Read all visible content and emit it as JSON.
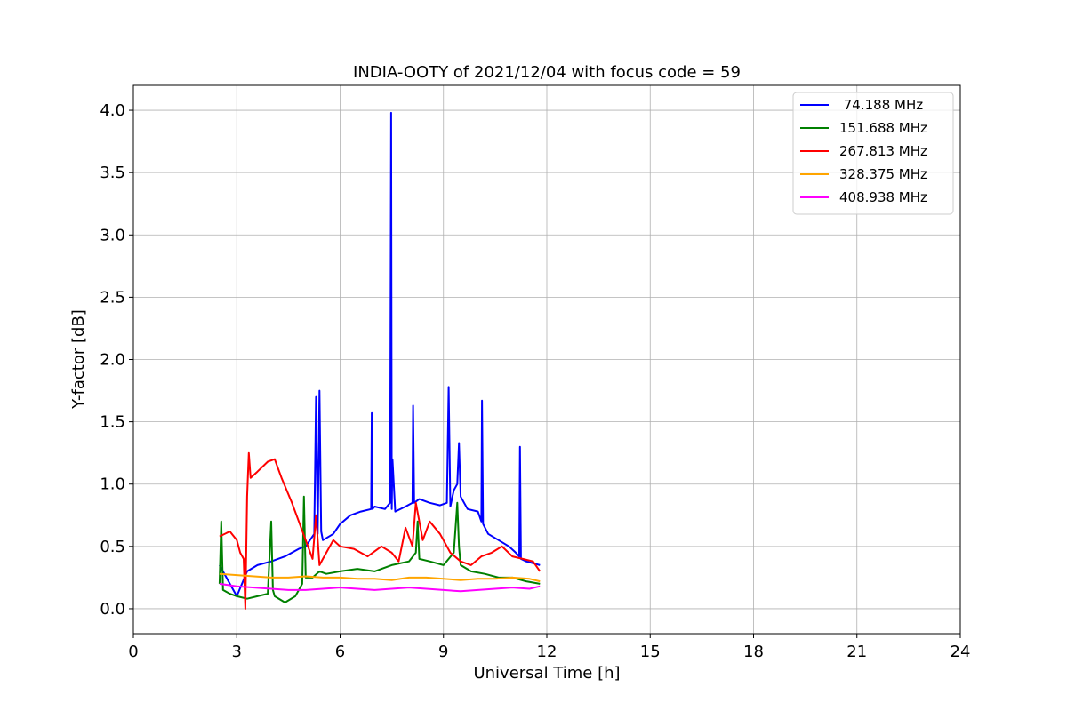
{
  "chart_data": {
    "type": "line",
    "title": "INDIA-OOTY of 2021/12/04 with focus code = 59",
    "xlabel": "Universal Time [h]",
    "ylabel": "Y-factor [dB]",
    "xlim": [
      0,
      24
    ],
    "ylim": [
      -0.2,
      4.2
    ],
    "xticks": [
      "0",
      "3",
      "6",
      "9",
      "12",
      "15",
      "18",
      "21",
      "24"
    ],
    "yticks": [
      "0.0",
      "0.5",
      "1.0",
      "1.5",
      "2.0",
      "2.5",
      "3.0",
      "3.5",
      "4.0"
    ],
    "grid": true,
    "legend_position": "top-right",
    "series": [
      {
        "name": " 74.188 MHz",
        "color": "#0000ff",
        "x": [
          2.5,
          2.8,
          3.0,
          3.3,
          3.6,
          4.0,
          4.4,
          4.8,
          5.0,
          5.25,
          5.3,
          5.35,
          5.4,
          5.45,
          5.5,
          5.8,
          6.0,
          6.3,
          6.6,
          6.9,
          6.92,
          6.94,
          7.0,
          7.3,
          7.45,
          7.48,
          7.5,
          7.52,
          7.6,
          7.9,
          8.1,
          8.12,
          8.15,
          8.3,
          8.6,
          8.9,
          9.1,
          9.15,
          9.2,
          9.3,
          9.4,
          9.45,
          9.5,
          9.7,
          10.0,
          10.1,
          10.12,
          10.15,
          10.3,
          10.6,
          10.9,
          11.1,
          11.2,
          11.22,
          11.25,
          11.4,
          11.8
        ],
        "y": [
          0.35,
          0.2,
          0.1,
          0.3,
          0.35,
          0.38,
          0.42,
          0.48,
          0.5,
          0.6,
          1.7,
          0.6,
          1.75,
          0.62,
          0.55,
          0.6,
          0.68,
          0.75,
          0.78,
          0.8,
          1.57,
          0.8,
          0.82,
          0.8,
          0.85,
          3.98,
          0.8,
          1.2,
          0.78,
          0.82,
          0.85,
          1.63,
          0.85,
          0.88,
          0.85,
          0.83,
          0.85,
          1.78,
          0.82,
          0.95,
          1.0,
          1.33,
          0.9,
          0.8,
          0.78,
          0.7,
          1.67,
          0.68,
          0.6,
          0.55,
          0.5,
          0.45,
          0.42,
          1.3,
          0.4,
          0.38,
          0.35
        ]
      },
      {
        "name": "151.688 MHz",
        "color": "#008000",
        "x": [
          2.5,
          2.55,
          2.6,
          2.8,
          3.0,
          3.3,
          3.6,
          3.9,
          4.0,
          4.05,
          4.1,
          4.4,
          4.7,
          4.9,
          4.95,
          5.0,
          5.2,
          5.4,
          5.6,
          6.0,
          6.5,
          7.0,
          7.5,
          8.0,
          8.2,
          8.25,
          8.3,
          8.6,
          9.0,
          9.3,
          9.4,
          9.45,
          9.5,
          9.8,
          10.2,
          10.6,
          11.0,
          11.4,
          11.8
        ],
        "y": [
          0.2,
          0.7,
          0.15,
          0.12,
          0.1,
          0.08,
          0.1,
          0.12,
          0.7,
          0.15,
          0.1,
          0.05,
          0.1,
          0.2,
          0.9,
          0.25,
          0.25,
          0.3,
          0.28,
          0.3,
          0.32,
          0.3,
          0.35,
          0.38,
          0.45,
          0.7,
          0.4,
          0.38,
          0.35,
          0.45,
          0.85,
          0.5,
          0.35,
          0.3,
          0.28,
          0.25,
          0.25,
          0.22,
          0.2
        ]
      },
      {
        "name": "267.813 MHz",
        "color": "#ff0000",
        "x": [
          2.5,
          2.8,
          3.0,
          3.1,
          3.2,
          3.25,
          3.3,
          3.35,
          3.4,
          3.6,
          3.9,
          4.1,
          4.3,
          4.6,
          5.0,
          5.2,
          5.3,
          5.4,
          5.5,
          5.8,
          6.0,
          6.4,
          6.8,
          7.2,
          7.5,
          7.7,
          7.9,
          8.1,
          8.2,
          8.4,
          8.6,
          8.9,
          9.2,
          9.5,
          9.8,
          10.1,
          10.4,
          10.7,
          11.0,
          11.3,
          11.6,
          11.8
        ],
        "y": [
          0.58,
          0.62,
          0.55,
          0.45,
          0.4,
          0.0,
          0.9,
          1.25,
          1.05,
          1.1,
          1.18,
          1.2,
          1.05,
          0.85,
          0.55,
          0.4,
          0.75,
          0.35,
          0.4,
          0.55,
          0.5,
          0.48,
          0.42,
          0.5,
          0.45,
          0.38,
          0.65,
          0.5,
          0.85,
          0.55,
          0.7,
          0.6,
          0.45,
          0.38,
          0.35,
          0.42,
          0.45,
          0.5,
          0.42,
          0.4,
          0.38,
          0.3
        ]
      },
      {
        "name": "328.375 MHz",
        "color": "#ffa500",
        "x": [
          2.5,
          3.0,
          3.5,
          4.0,
          4.5,
          5.0,
          5.5,
          6.0,
          6.5,
          7.0,
          7.5,
          8.0,
          8.5,
          9.0,
          9.5,
          10.0,
          10.5,
          11.0,
          11.5,
          11.8
        ],
        "y": [
          0.28,
          0.27,
          0.26,
          0.25,
          0.25,
          0.26,
          0.25,
          0.25,
          0.24,
          0.24,
          0.23,
          0.25,
          0.25,
          0.24,
          0.23,
          0.24,
          0.24,
          0.25,
          0.24,
          0.22
        ]
      },
      {
        "name": "408.938 MHz",
        "color": "#ff00ff",
        "x": [
          2.5,
          3.0,
          3.5,
          4.0,
          4.5,
          5.0,
          5.5,
          6.0,
          6.5,
          7.0,
          7.5,
          8.0,
          8.5,
          9.0,
          9.5,
          10.0,
          10.5,
          11.0,
          11.5,
          11.8
        ],
        "y": [
          0.2,
          0.18,
          0.17,
          0.16,
          0.15,
          0.15,
          0.16,
          0.17,
          0.16,
          0.15,
          0.16,
          0.17,
          0.16,
          0.15,
          0.14,
          0.15,
          0.16,
          0.17,
          0.16,
          0.18
        ]
      }
    ]
  }
}
